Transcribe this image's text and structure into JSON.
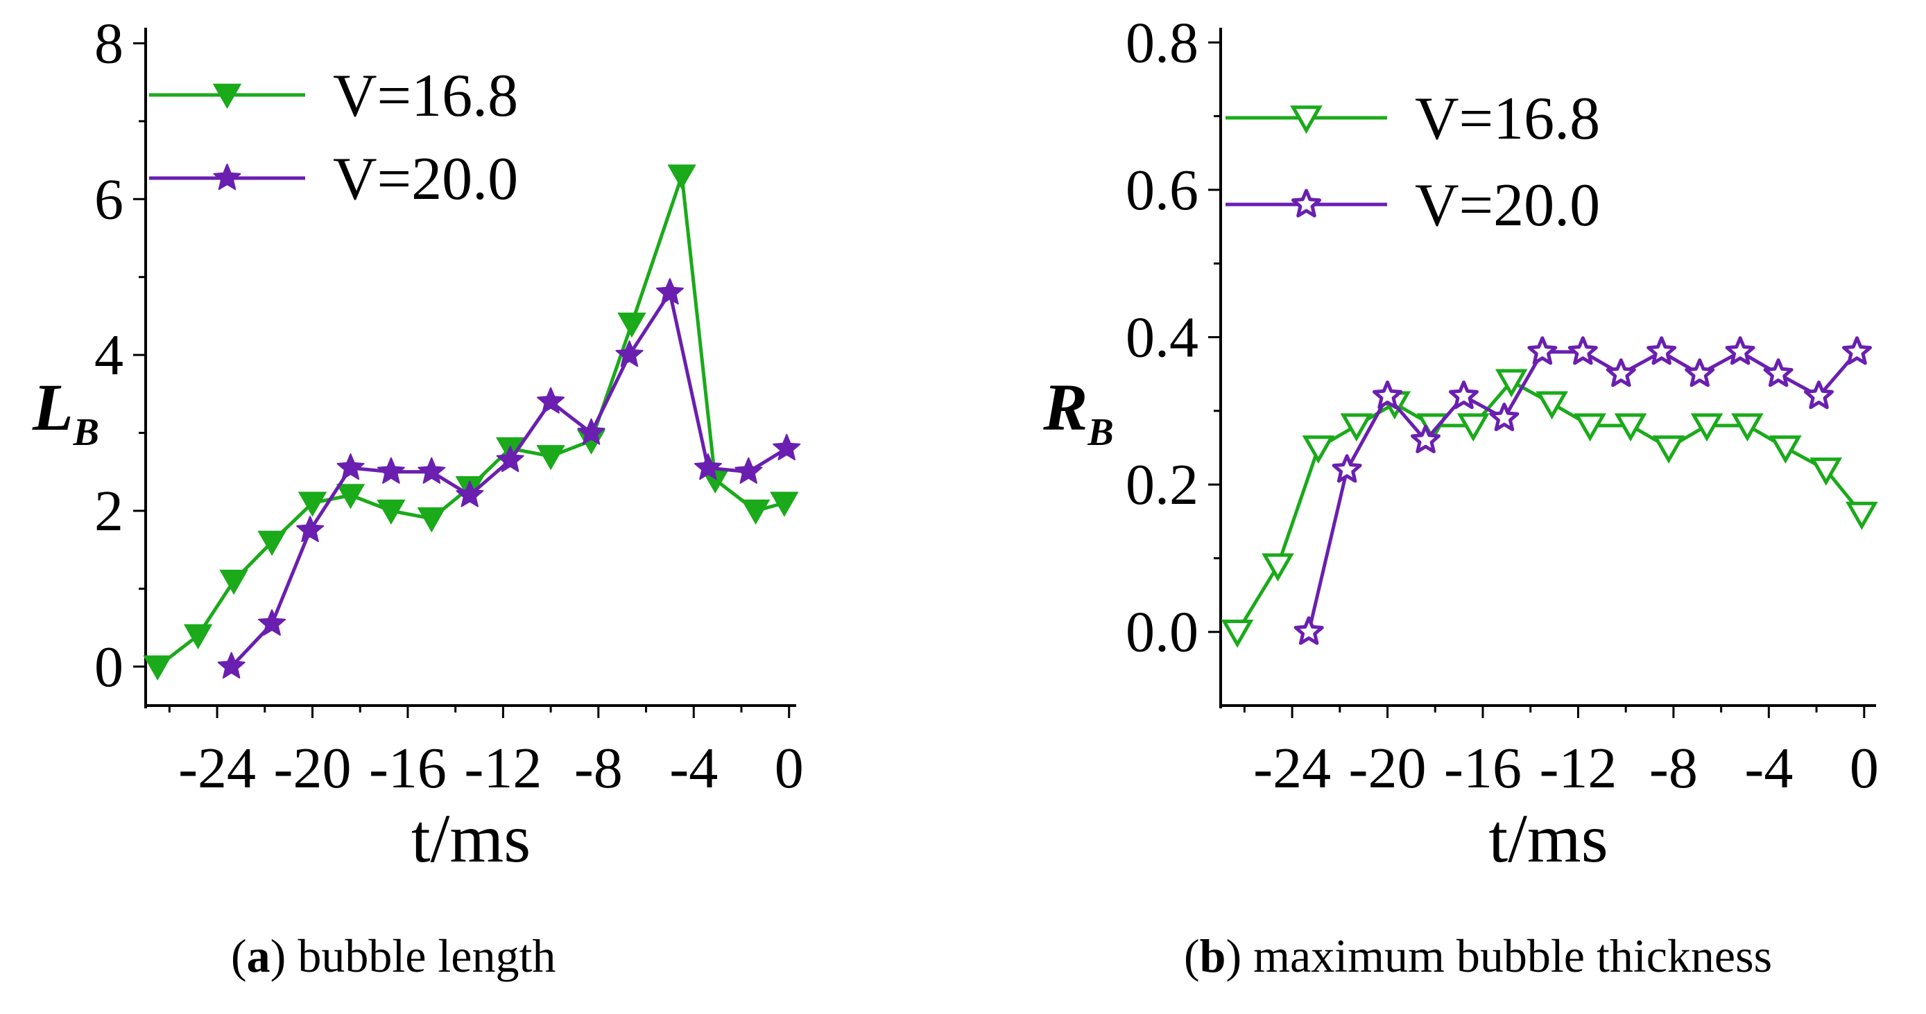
{
  "colors": {
    "green": "#1aaa1a",
    "purple": "#6a1fb0",
    "axis": "#000000"
  },
  "captions": [
    {
      "letter": "a",
      "text": "bubble length",
      "open": "(",
      "close": ")"
    },
    {
      "letter": "b",
      "text": "maximum bubble thickness",
      "open": "(",
      "close": ")"
    }
  ],
  "chart_data": [
    {
      "type": "line",
      "title": "",
      "xlabel": "t/ms",
      "ylabel": "L",
      "ylabel_sub": "B",
      "xlim": [
        -27,
        0.3
      ],
      "ylim": [
        -0.5,
        8.2
      ],
      "xticks": [
        -24,
        -20,
        -16,
        -12,
        -8,
        -4,
        0
      ],
      "xtick_labels": [
        "-24",
        "-20",
        "-16",
        "-12",
        "-8",
        "-4",
        "0"
      ],
      "yticks": [
        0,
        2,
        4,
        6,
        8
      ],
      "ytick_labels": [
        "0",
        "2",
        "4",
        "6",
        "8"
      ],
      "legend_position": "top-left",
      "series": [
        {
          "name": "V=16.8",
          "color": "green",
          "marker": "triangle-down-filled",
          "x": [
            -26.5,
            -24.8,
            -23.3,
            -21.7,
            -20.0,
            -18.4,
            -16.7,
            -15.0,
            -13.4,
            -11.7,
            -10.0,
            -8.3,
            -6.6,
            -4.5,
            -3.1,
            -1.4,
            -0.2
          ],
          "y": [
            0.0,
            0.4,
            1.1,
            1.6,
            2.1,
            2.2,
            2.0,
            1.9,
            2.3,
            2.8,
            2.7,
            2.9,
            4.4,
            6.3,
            2.4,
            2.0,
            2.1
          ]
        },
        {
          "name": "V=20.0",
          "color": "purple",
          "marker": "star-filled",
          "x": [
            -23.4,
            -21.7,
            -20.1,
            -18.4,
            -16.7,
            -15.0,
            -13.4,
            -11.7,
            -10.0,
            -8.3,
            -6.7,
            -5.0,
            -3.4,
            -1.7,
            -0.1
          ],
          "y": [
            0.0,
            0.55,
            1.75,
            2.55,
            2.5,
            2.5,
            2.2,
            2.65,
            3.4,
            3.0,
            4.0,
            4.8,
            2.55,
            2.5,
            2.8
          ]
        }
      ]
    },
    {
      "type": "line",
      "title": "",
      "xlabel": "t/ms",
      "ylabel": "R",
      "ylabel_sub": "B",
      "xlim": [
        -27,
        0.5
      ],
      "ylim": [
        -0.1,
        0.82
      ],
      "xticks": [
        -24,
        -20,
        -16,
        -12,
        -8,
        -4,
        0
      ],
      "xtick_labels": [
        "-24",
        "-20",
        "-16",
        "-12",
        "-8",
        "-4",
        "0"
      ],
      "yticks": [
        0.0,
        0.2,
        0.4,
        0.6,
        0.8
      ],
      "ytick_labels": [
        "0.0",
        "0.2",
        "0.4",
        "0.6",
        "0.8"
      ],
      "legend_position": "top-left",
      "series": [
        {
          "name": "V=16.8",
          "color": "green",
          "marker": "triangle-down-open",
          "x": [
            -26.3,
            -24.6,
            -22.9,
            -21.3,
            -19.7,
            -18.1,
            -16.4,
            -14.8,
            -13.1,
            -11.5,
            -9.8,
            -8.2,
            -6.6,
            -4.9,
            -3.3,
            -1.6,
            -0.1
          ],
          "y": [
            0.0,
            0.09,
            0.25,
            0.28,
            0.31,
            0.28,
            0.28,
            0.34,
            0.31,
            0.28,
            0.28,
            0.25,
            0.28,
            0.28,
            0.25,
            0.22,
            0.16
          ]
        },
        {
          "name": "V=20.0",
          "color": "purple",
          "marker": "star-open",
          "x": [
            -23.3,
            -21.7,
            -20.0,
            -18.4,
            -16.8,
            -15.1,
            -13.5,
            -11.8,
            -10.2,
            -8.5,
            -6.9,
            -5.2,
            -3.6,
            -1.9,
            -0.3
          ],
          "y": [
            0.0,
            0.22,
            0.32,
            0.26,
            0.32,
            0.29,
            0.38,
            0.38,
            0.35,
            0.38,
            0.35,
            0.38,
            0.35,
            0.32,
            0.38
          ]
        }
      ]
    }
  ]
}
